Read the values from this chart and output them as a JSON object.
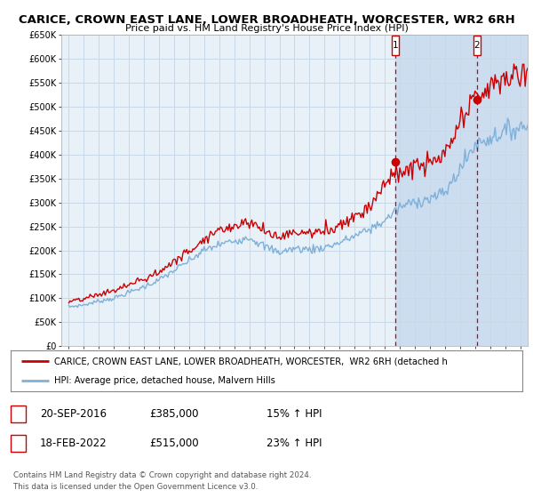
{
  "title": "CARICE, CROWN EAST LANE, LOWER BROADHEATH, WORCESTER, WR2 6RH",
  "subtitle": "Price paid vs. HM Land Registry's House Price Index (HPI)",
  "ylim": [
    0,
    650000
  ],
  "yticks": [
    0,
    50000,
    100000,
    150000,
    200000,
    250000,
    300000,
    350000,
    400000,
    450000,
    500000,
    550000,
    600000,
    650000
  ],
  "ytick_labels": [
    "£0",
    "£50K",
    "£100K",
    "£150K",
    "£200K",
    "£250K",
    "£300K",
    "£350K",
    "£400K",
    "£450K",
    "£500K",
    "£550K",
    "£600K",
    "£650K"
  ],
  "sale1_date": "20-SEP-2016",
  "sale1_price": 385000,
  "sale1_label": "15% ↑ HPI",
  "sale2_date": "18-FEB-2022",
  "sale2_price": 515000,
  "sale2_label": "23% ↑ HPI",
  "sale1_x": 2016.72,
  "sale2_x": 2022.12,
  "legend_line1": "CARICE, CROWN EAST LANE, LOWER BROADHEATH, WORCESTER,  WR2 6RH (detached h",
  "legend_line2": "HPI: Average price, detached house, Malvern Hills",
  "footer1": "Contains HM Land Registry data © Crown copyright and database right 2024.",
  "footer2": "This data is licensed under the Open Government Licence v3.0.",
  "line_color_red": "#cc0000",
  "line_color_blue": "#7fb0d8",
  "bg_color": "#e8f0f8",
  "shade_color": "#ccddf0",
  "grid_color": "#c8d8e8",
  "hpi_base": [
    82000,
    86000,
    94000,
    100000,
    112000,
    124000,
    138000,
    158000,
    178000,
    200000,
    212000,
    220000,
    228000,
    208000,
    196000,
    204000,
    202000,
    206000,
    216000,
    230000,
    244000,
    262000,
    290000,
    302000,
    308000,
    320000,
    370000,
    420000,
    435000,
    448000,
    458000,
    462000
  ],
  "price_base": [
    92000,
    98000,
    108000,
    116000,
    128000,
    140000,
    154000,
    178000,
    198000,
    226000,
    242000,
    252000,
    262000,
    240000,
    228000,
    238000,
    236000,
    240000,
    254000,
    272000,
    292000,
    342000,
    362000,
    376000,
    380000,
    398000,
    462000,
    520000,
    540000,
    560000,
    568000,
    570000
  ],
  "x_start": 1995.0,
  "x_end": 2025.5,
  "xtick_start": 1995,
  "xtick_end": 2025
}
